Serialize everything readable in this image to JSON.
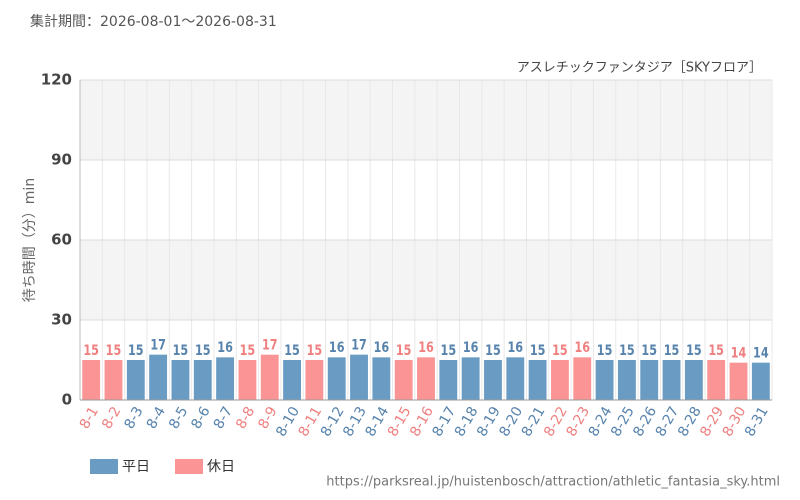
{
  "chart_data": {
    "type": "bar",
    "title": "集計期間：2026-08-01～2026-08-31",
    "subtitle": "アスレチックファンタジア［SKYフロア］",
    "y_label": "待ち時間（分）min",
    "source": "https://parksreal.jp/huistenbosch/attraction/athletic_fantasia_sky.html",
    "categories": [
      "8-1",
      "8-2",
      "8-3",
      "8-4",
      "8-5",
      "8-6",
      "8-7",
      "8-8",
      "8-9",
      "8-10",
      "8-11",
      "8-12",
      "8-13",
      "8-14",
      "8-15",
      "8-16",
      "8-17",
      "8-18",
      "8-19",
      "8-20",
      "8-21",
      "8-22",
      "8-23",
      "8-24",
      "8-25",
      "8-26",
      "8-27",
      "8-28",
      "8-29",
      "8-30",
      "8-31"
    ],
    "series": [
      {
        "name": "平日",
        "color": "#6a9bc3",
        "label_color": "#5783ad",
        "values": [
          null,
          null,
          15,
          17,
          15,
          15,
          16,
          null,
          null,
          15,
          null,
          16,
          17,
          16,
          null,
          null,
          15,
          16,
          15,
          16,
          15,
          null,
          null,
          15,
          15,
          15,
          15,
          15,
          null,
          null,
          14
        ]
      },
      {
        "name": "休日",
        "color": "#fb9595",
        "label_color": "#f08080",
        "values": [
          15,
          15,
          null,
          null,
          null,
          null,
          null,
          15,
          17,
          null,
          15,
          null,
          null,
          null,
          15,
          16,
          null,
          null,
          null,
          null,
          null,
          15,
          16,
          null,
          null,
          null,
          null,
          null,
          15,
          14,
          null
        ]
      }
    ],
    "ylim": [
      0,
      120
    ],
    "yticks": [
      0,
      30,
      60,
      90,
      120
    ],
    "grid": true
  }
}
